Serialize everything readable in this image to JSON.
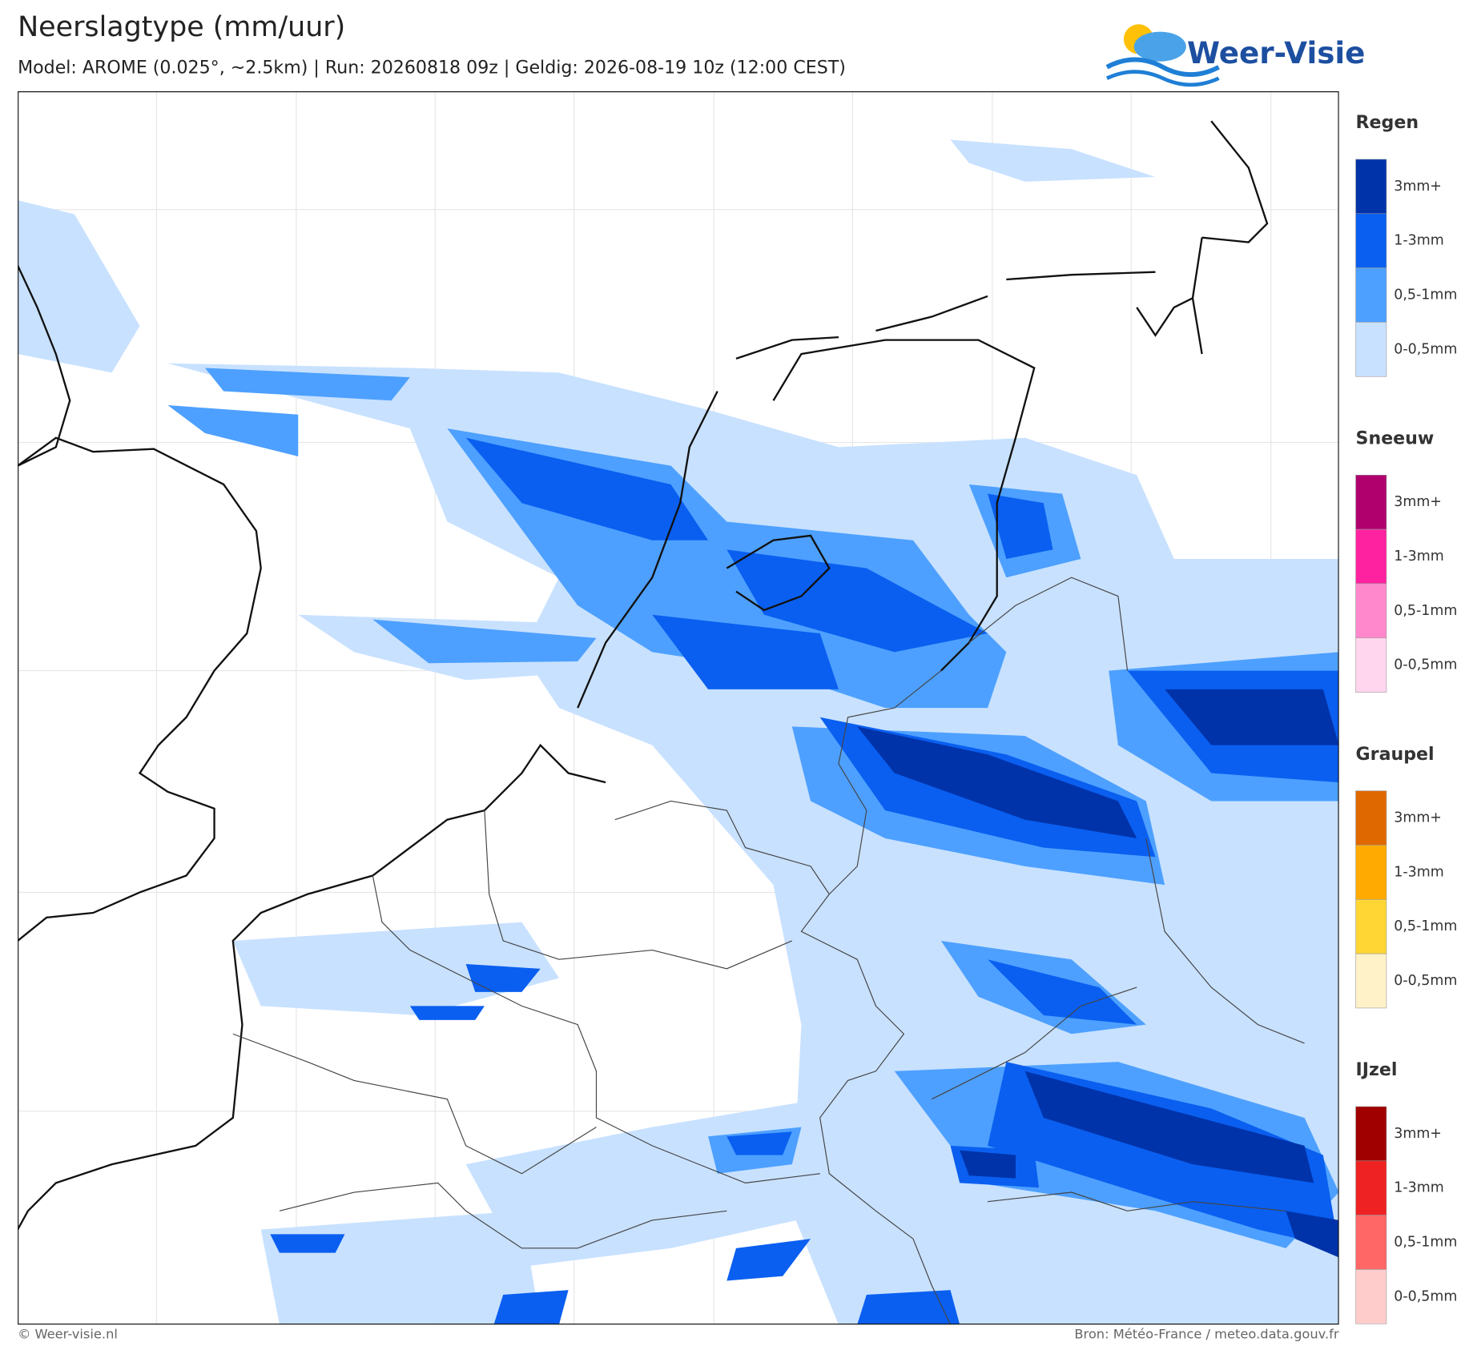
{
  "header": {
    "title": "Neerslagtype (mm/uur)",
    "subtitle": "Model: AROME (0.025°, ~2.5km)  |  Run: 20260818 09z  |  Geldig: 2026-08-19 10z (12:00 CEST)",
    "logo": "Weer-Visie"
  },
  "legend": [
    {
      "title": "Regen",
      "items": [
        {
          "label": "3mm+",
          "color": "#0033aa"
        },
        {
          "label": "1-3mm",
          "color": "#0a5ff0"
        },
        {
          "label": "0,5-1mm",
          "color": "#4da0ff"
        },
        {
          "label": "0-0,5mm",
          "color": "#c8e1ff"
        }
      ]
    },
    {
      "title": "Sneeuw",
      "items": [
        {
          "label": "3mm+",
          "color": "#b0006e"
        },
        {
          "label": "1-3mm",
          "color": "#ff22a0"
        },
        {
          "label": "0,5-1mm",
          "color": "#ff88cc"
        },
        {
          "label": "0-0,5mm",
          "color": "#ffd6ee"
        }
      ]
    },
    {
      "title": "Graupel",
      "items": [
        {
          "label": "3mm+",
          "color": "#e06800"
        },
        {
          "label": "1-3mm",
          "color": "#ffaa00"
        },
        {
          "label": "0,5-1mm",
          "color": "#ffd633"
        },
        {
          "label": "0-0,5mm",
          "color": "#fff2c8"
        }
      ]
    },
    {
      "title": "IJzel",
      "items": [
        {
          "label": "3mm+",
          "color": "#a00000"
        },
        {
          "label": "1-3mm",
          "color": "#ee2222"
        },
        {
          "label": "0,5-1mm",
          "color": "#ff6666"
        },
        {
          "label": "0-0,5mm",
          "color": "#ffcccc"
        }
      ]
    }
  ],
  "footer": {
    "left": "© Weer-visie.nl",
    "right": "Bron: Météo-France / meteo.data.gouv.fr"
  }
}
